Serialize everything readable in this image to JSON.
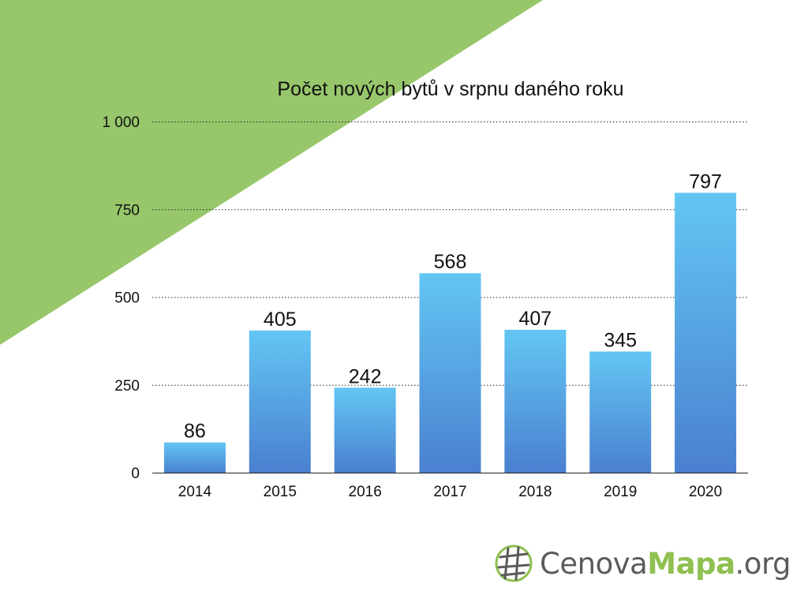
{
  "colors": {
    "accent_green": "#97c76a",
    "bar_top": "#63c6f4",
    "bar_bottom": "#4a80cf",
    "logo_gray": "#5b5b5b",
    "logo_green": "#8fc050"
  },
  "chart_data": {
    "type": "bar",
    "title": "Počet nových bytů v srpnu daného roku",
    "categories": [
      "2014",
      "2015",
      "2016",
      "2017",
      "2018",
      "2019",
      "2020"
    ],
    "values": [
      86,
      405,
      242,
      568,
      407,
      345,
      797
    ],
    "value_labels": [
      "86",
      "405",
      "242",
      "568",
      "407",
      "345",
      "797"
    ],
    "ylim": [
      0,
      1000
    ],
    "yticks": [
      0,
      250,
      500,
      750,
      1000
    ],
    "ytick_labels": [
      "0",
      "250",
      "500",
      "750",
      "1 000"
    ],
    "grid": true,
    "xlabel": "",
    "ylabel": ""
  },
  "logo": {
    "icon": "globe-icon",
    "part1": "Cenova",
    "part2": "Mapa",
    "part3": ".org"
  }
}
